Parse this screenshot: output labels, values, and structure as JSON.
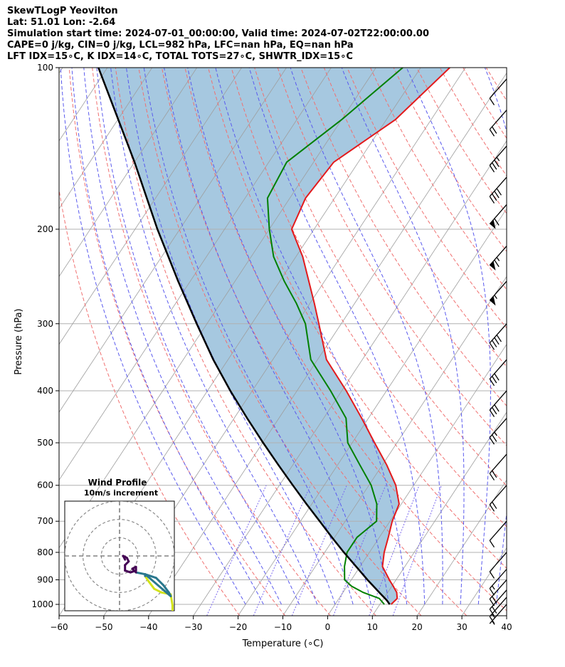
{
  "title": {
    "line1": "SkewTLogP Yeovilton",
    "line2": "Lat: 51.01   Lon: -2.64",
    "line3": "Simulation start time: 2024-07-01_00:00:00, Valid time: 2024-07-02T22:00:00.00",
    "line4": "CAPE=0 j/kg, CIN=0 j/kg, LCL=982 hPa, LFC=nan hPa, EQ=nan hPa",
    "line5": "LFT IDX=15∘C, K IDX=14∘C, TOTAL TOTS=27∘C, SHWTR_IDX=15∘C"
  },
  "colors": {
    "temperature": "#e31a1c",
    "dewpoint": "#008000",
    "parcel": "#000000",
    "fill": "#a6c8e0",
    "dry_adiabat": "#f07070",
    "moist_adiabat": "#5a5aee",
    "mixing_ratio": "#7b68ee",
    "isotherm": "#9e9e9e",
    "isobar": "#b0b0b0",
    "hodograph_low": "#440154",
    "hodograph_mid": "#2a788e",
    "hodograph_high": "#d2e21b"
  },
  "chart_data": {
    "type": "line",
    "subtype": "skew-t log-p",
    "xlabel": "Temperature (∘C)",
    "ylabel": "Pressure (hPa)",
    "xlim": [
      -60,
      40
    ],
    "ylim": [
      1050,
      100
    ],
    "x_ticks": [
      -60,
      -50,
      -40,
      -30,
      -20,
      -10,
      0,
      10,
      20,
      30,
      40
    ],
    "y_ticks": [
      100,
      200,
      300,
      400,
      500,
      600,
      700,
      800,
      900,
      1000
    ],
    "series": [
      {
        "name": "Temperature",
        "pressure": [
          1000,
          975,
          950,
          925,
          900,
          850,
          800,
          750,
          700,
          650,
          600,
          550,
          500,
          450,
          400,
          350,
          300,
          275,
          250,
          225,
          200,
          175,
          150,
          125,
          100
        ],
        "values": [
          12.5,
          13.0,
          12.0,
          10.3,
          8.5,
          5.0,
          3.3,
          2.0,
          0.5,
          -0.5,
          -4.0,
          -9.0,
          -15.0,
          -21.5,
          -29.0,
          -38.0,
          -45.0,
          -49.0,
          -53.5,
          -58.5,
          -65.0,
          -66.5,
          -65.5,
          -58.0,
          -53.5
        ]
      },
      {
        "name": "Dewpoint",
        "pressure": [
          1000,
          975,
          950,
          925,
          900,
          850,
          800,
          750,
          700,
          650,
          600,
          550,
          500,
          450,
          400,
          350,
          300,
          275,
          250,
          225,
          200,
          175,
          150,
          125,
          100
        ],
        "values": [
          11.0,
          9.0,
          4.5,
          1.0,
          -1.5,
          -3.5,
          -5.0,
          -5.0,
          -3.0,
          -5.5,
          -9.5,
          -15.0,
          -21.0,
          -25.0,
          -32.5,
          -41.5,
          -48.0,
          -53.0,
          -59.0,
          -65.0,
          -70.0,
          -75.0,
          -76.0,
          -70.0,
          -64.0
        ]
      },
      {
        "name": "Parcel",
        "pressure": [
          1000,
          982,
          950,
          900,
          850,
          800,
          750,
          700,
          650,
          600,
          550,
          500,
          450,
          400,
          350,
          300,
          250,
          200,
          150,
          100
        ],
        "values": [
          12.2,
          10.9,
          8.1,
          3.6,
          -0.9,
          -5.7,
          -10.6,
          -15.7,
          -21.2,
          -27.0,
          -33.2,
          -39.9,
          -47.1,
          -54.9,
          -63.3,
          -72.3,
          -82.7,
          -95.0,
          -110.0,
          -132.0
        ]
      }
    ],
    "wind_barbs": [
      {
        "pressure": 1000,
        "speed_kt": 5
      },
      {
        "pressure": 970,
        "speed_kt": 15
      },
      {
        "pressure": 940,
        "speed_kt": 20
      },
      {
        "pressure": 900,
        "speed_kt": 20
      },
      {
        "pressure": 860,
        "speed_kt": 15
      },
      {
        "pressure": 800,
        "speed_kt": 10
      },
      {
        "pressure": 700,
        "speed_kt": 10
      },
      {
        "pressure": 600,
        "speed_kt": 20
      },
      {
        "pressure": 525,
        "speed_kt": 20
      },
      {
        "pressure": 450,
        "speed_kt": 25
      },
      {
        "pressure": 400,
        "speed_kt": 30
      },
      {
        "pressure": 350,
        "speed_kt": 30
      },
      {
        "pressure": 300,
        "speed_kt": 40
      },
      {
        "pressure": 250,
        "speed_kt": 55
      },
      {
        "pressure": 215,
        "speed_kt": 65
      },
      {
        "pressure": 180,
        "speed_kt": 60
      },
      {
        "pressure": 160,
        "speed_kt": 40
      },
      {
        "pressure": 140,
        "speed_kt": 35
      },
      {
        "pressure": 120,
        "speed_kt": 20
      },
      {
        "pressure": 105,
        "speed_kt": 10
      }
    ],
    "hodograph": {
      "title": "Wind Profile",
      "subtitle": "10m/s increment",
      "rings_ms": [
        10,
        20,
        30
      ],
      "range_ms": 30,
      "points": [
        {
          "u": 29,
          "v": -30,
          "band": "high"
        },
        {
          "u": 29,
          "v": -27,
          "band": "high"
        },
        {
          "u": 28,
          "v": -21,
          "band": "high"
        },
        {
          "u": 23,
          "v": -20,
          "band": "high"
        },
        {
          "u": 19,
          "v": -18,
          "band": "high"
        },
        {
          "u": 16,
          "v": -14,
          "band": "high"
        },
        {
          "u": 14,
          "v": -11,
          "band": "high"
        },
        {
          "u": 14,
          "v": -10,
          "band": "mid"
        },
        {
          "u": 20,
          "v": -12,
          "band": "mid"
        },
        {
          "u": 24,
          "v": -16,
          "band": "mid"
        },
        {
          "u": 27,
          "v": -20,
          "band": "mid"
        },
        {
          "u": 28,
          "v": -22,
          "band": "mid"
        },
        {
          "u": 14,
          "v": -10,
          "band": "mid"
        },
        {
          "u": 9,
          "v": -9,
          "band": "mid"
        },
        {
          "u": 7,
          "v": -7,
          "band": "low"
        },
        {
          "u": 9,
          "v": -6,
          "band": "low"
        },
        {
          "u": 9,
          "v": -8,
          "band": "low"
        },
        {
          "u": 6,
          "v": -9,
          "band": "low"
        },
        {
          "u": 3,
          "v": -8,
          "band": "low"
        },
        {
          "u": 3,
          "v": -5,
          "band": "low"
        },
        {
          "u": 5,
          "v": -3,
          "band": "low"
        },
        {
          "u": 4,
          "v": -1,
          "band": "low"
        },
        {
          "u": 2,
          "v": 0,
          "band": "low"
        },
        {
          "u": 3,
          "v": -2,
          "band": "low"
        }
      ]
    }
  }
}
